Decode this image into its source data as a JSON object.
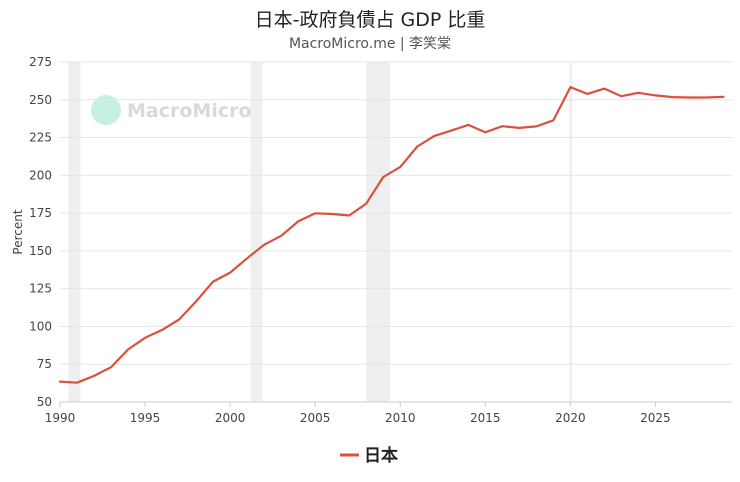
{
  "chart_data": {
    "type": "line",
    "title": "日本-政府負債占 GDP 比重",
    "subtitle": "MacroMicro.me | 李笑棠",
    "watermark": "MacroMicro",
    "xlabel": "",
    "ylabel": "Percent",
    "xlim": [
      1990,
      2029.5
    ],
    "ylim": [
      50,
      275
    ],
    "yticks": [
      50,
      75,
      100,
      125,
      150,
      175,
      200,
      225,
      250,
      275
    ],
    "xticks": [
      1990,
      1995,
      2000,
      2005,
      2010,
      2015,
      2020,
      2025
    ],
    "grid": true,
    "legend_position": "bottom-center",
    "recession_bands": [
      {
        "start": 1990.5,
        "end": 1991.2
      },
      {
        "start": 2001.2,
        "end": 2001.9
      },
      {
        "start": 2008.0,
        "end": 2009.4
      },
      {
        "start": 2019.95,
        "end": 2020.1
      }
    ],
    "series": [
      {
        "name": "日本",
        "color": "#d9513f",
        "x": [
          1990,
          1991,
          1992,
          1993,
          1994,
          1995,
          1996,
          1997,
          1998,
          1999,
          2000,
          2001,
          2002,
          2003,
          2004,
          2005,
          2006,
          2007,
          2008,
          2009,
          2010,
          2011,
          2012,
          2013,
          2014,
          2015,
          2016,
          2017,
          2018,
          2019,
          2020,
          2021,
          2022,
          2023,
          2024,
          2025,
          2026,
          2027,
          2028,
          2029
        ],
        "values": [
          63.5,
          62.8,
          67.3,
          73.0,
          84.8,
          92.5,
          97.7,
          104.6,
          116.6,
          129.7,
          135.6,
          145.1,
          154.1,
          160.0,
          169.5,
          174.9,
          174.4,
          173.4,
          181.3,
          198.8,
          205.6,
          219.1,
          226.1,
          229.6,
          233.4,
          228.5,
          232.5,
          231.4,
          232.4,
          236.4,
          258.4,
          253.9,
          257.4,
          252.4,
          254.6,
          252.9,
          251.8,
          251.5,
          251.5,
          252.0
        ]
      }
    ]
  }
}
